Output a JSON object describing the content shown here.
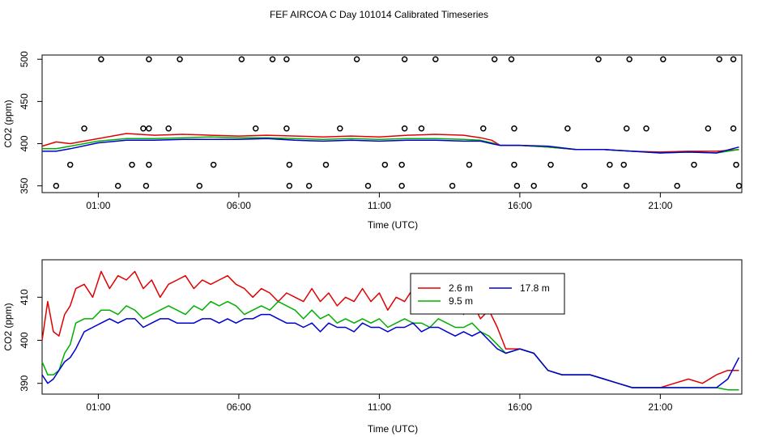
{
  "title": "FEF AIRCOA C  Day 101014  Calibrated Timeseries",
  "colors": {
    "s2_6": "#e00000",
    "s9_5": "#00b000",
    "s17_8": "#0000d0",
    "axis": "#000000"
  },
  "chart_data": [
    {
      "type": "scatter+line",
      "xlabel": "Time (UTC)",
      "ylabel": "CO2 (ppm)",
      "xlim": [
        -1.0,
        23.9
      ],
      "ylim": [
        342,
        505
      ],
      "x_ticks": [
        1,
        6,
        11,
        16,
        21
      ],
      "x_tick_labels": [
        "01:00",
        "06:00",
        "11:00",
        "16:00",
        "21:00"
      ],
      "y_ticks": [
        350,
        400,
        450,
        500
      ],
      "y_tick_labels": [
        "350",
        "400",
        "450",
        "500"
      ],
      "grid": false,
      "points": [
        [
          -0.5,
          350
        ],
        [
          0.0,
          375
        ],
        [
          0.5,
          418
        ],
        [
          1.1,
          500
        ],
        [
          1.7,
          350
        ],
        [
          2.2,
          375
        ],
        [
          2.6,
          418
        ],
        [
          2.8,
          375
        ],
        [
          2.8,
          418
        ],
        [
          2.7,
          350
        ],
        [
          2.8,
          500
        ],
        [
          3.5,
          418
        ],
        [
          3.9,
          500
        ],
        [
          4.6,
          350
        ],
        [
          5.1,
          375
        ],
        [
          6.6,
          418
        ],
        [
          6.1,
          500
        ],
        [
          7.2,
          500
        ],
        [
          7.7,
          418
        ],
        [
          7.7,
          500
        ],
        [
          7.8,
          375
        ],
        [
          7.8,
          350
        ],
        [
          8.5,
          350
        ],
        [
          9.1,
          375
        ],
        [
          9.6,
          418
        ],
        [
          10.2,
          500
        ],
        [
          10.6,
          350
        ],
        [
          11.2,
          375
        ],
        [
          11.8,
          375
        ],
        [
          11.8,
          350
        ],
        [
          11.9,
          418
        ],
        [
          11.9,
          500
        ],
        [
          12.5,
          418
        ],
        [
          13.0,
          500
        ],
        [
          13.6,
          350
        ],
        [
          14.2,
          375
        ],
        [
          14.7,
          418
        ],
        [
          15.1,
          500
        ],
        [
          15.7,
          500
        ],
        [
          15.8,
          418
        ],
        [
          15.8,
          375
        ],
        [
          15.9,
          350
        ],
        [
          16.5,
          350
        ],
        [
          17.1,
          375
        ],
        [
          17.7,
          418
        ],
        [
          18.3,
          350
        ],
        [
          18.8,
          500
        ],
        [
          19.2,
          375
        ],
        [
          19.7,
          375
        ],
        [
          19.8,
          418
        ],
        [
          19.8,
          350
        ],
        [
          19.9,
          500
        ],
        [
          20.5,
          418
        ],
        [
          21.1,
          500
        ],
        [
          21.6,
          350
        ],
        [
          22.2,
          375
        ],
        [
          22.7,
          418
        ],
        [
          23.1,
          500
        ],
        [
          23.6,
          500
        ],
        [
          23.6,
          418
        ],
        [
          23.7,
          375
        ],
        [
          23.8,
          350
        ]
      ],
      "series": [
        {
          "name": "2.6 m",
          "x": [
            -1.0,
            -0.5,
            0,
            1,
            2,
            3,
            4,
            5,
            6,
            7,
            8,
            9,
            10,
            11,
            12,
            13,
            14,
            14.6,
            15.0,
            15.3,
            16,
            17,
            18,
            19,
            20,
            21,
            22,
            23,
            23.8
          ],
          "values": [
            397,
            402,
            400,
            406,
            412,
            410,
            411,
            410,
            409,
            410,
            409,
            408,
            409,
            408,
            410,
            411,
            410,
            407,
            404,
            398,
            398,
            396,
            393,
            393,
            391,
            390,
            391,
            391,
            393
          ]
        },
        {
          "name": "9.5 m",
          "x": [
            -1.0,
            -0.5,
            0,
            1,
            2,
            3,
            4,
            5,
            6,
            7,
            8,
            9,
            10,
            11,
            12,
            13,
            14,
            14.6,
            15.0,
            15.3,
            16,
            17,
            18,
            19,
            20,
            21,
            22,
            23,
            23.8
          ],
          "values": [
            394,
            394,
            397,
            403,
            406,
            406,
            407,
            408,
            407,
            407,
            406,
            405,
            406,
            405,
            406,
            406,
            405,
            404,
            401,
            398,
            398,
            396,
            393,
            393,
            391,
            389,
            390,
            389,
            393
          ]
        },
        {
          "name": "17.8 m",
          "x": [
            -1.0,
            -0.5,
            0,
            1,
            2,
            3,
            4,
            5,
            6,
            7,
            8,
            9,
            10,
            11,
            12,
            13,
            14,
            14.6,
            15.0,
            15.3,
            16,
            17,
            18,
            19,
            20,
            21,
            22,
            23,
            23.8
          ],
          "values": [
            391,
            391,
            394,
            401,
            404,
            404,
            405,
            405,
            405,
            406,
            404,
            403,
            404,
            403,
            404,
            404,
            403,
            403,
            400,
            398,
            398,
            397,
            393,
            393,
            391,
            389,
            390,
            389,
            396
          ]
        }
      ]
    },
    {
      "type": "line",
      "xlabel": "Time (UTC)",
      "ylabel": "CO2 (ppm)",
      "xlim": [
        -1.0,
        23.9
      ],
      "ylim": [
        387.5,
        418.7
      ],
      "x_ticks": [
        1,
        6,
        11,
        16,
        21
      ],
      "x_tick_labels": [
        "01:00",
        "06:00",
        "11:00",
        "16:00",
        "21:00"
      ],
      "y_ticks": [
        390,
        400,
        410
      ],
      "y_tick_labels": [
        "390",
        "400",
        "410"
      ],
      "grid": false,
      "legend": {
        "placement": "top-center",
        "entries": [
          "2.6 m",
          "17.8 m",
          "9.5 m"
        ]
      },
      "series": [
        {
          "name": "2.6 m",
          "x": [
            -1.0,
            -0.8,
            -0.6,
            -0.4,
            -0.2,
            0.0,
            0.2,
            0.5,
            0.8,
            1.1,
            1.4,
            1.7,
            2.0,
            2.3,
            2.6,
            2.9,
            3.2,
            3.5,
            3.8,
            4.1,
            4.4,
            4.7,
            5.0,
            5.3,
            5.6,
            5.9,
            6.2,
            6.5,
            6.8,
            7.1,
            7.4,
            7.7,
            8.0,
            8.3,
            8.6,
            8.9,
            9.2,
            9.5,
            9.8,
            10.1,
            10.4,
            10.7,
            11.0,
            11.3,
            11.6,
            11.9,
            12.2,
            12.5,
            12.8,
            13.1,
            13.4,
            13.7,
            14.0,
            14.3,
            14.6,
            14.9,
            15.2,
            15.5,
            16.0,
            16.5,
            17.0,
            17.5,
            18.0,
            18.5,
            19.0,
            19.5,
            20.0,
            20.5,
            21.0,
            21.5,
            22.0,
            22.5,
            23.0,
            23.4,
            23.8
          ],
          "values": [
            400,
            409,
            402,
            401,
            406,
            408,
            412,
            413,
            410,
            416,
            412,
            415,
            414,
            416,
            412,
            414,
            410,
            413,
            414,
            415,
            412,
            414,
            413,
            414,
            415,
            413,
            412,
            410,
            412,
            411,
            409,
            411,
            410,
            409,
            412,
            409,
            411,
            408,
            410,
            409,
            412,
            409,
            411,
            407,
            410,
            409,
            412,
            408,
            410,
            411,
            409,
            410,
            406,
            409,
            405,
            407,
            403,
            398,
            398,
            397,
            393,
            392,
            392,
            392,
            391,
            390,
            389,
            389,
            389,
            390,
            391,
            390,
            392,
            393,
            393
          ]
        },
        {
          "name": "9.5 m",
          "x": [
            -1.0,
            -0.8,
            -0.6,
            -0.4,
            -0.2,
            0.0,
            0.2,
            0.5,
            0.8,
            1.1,
            1.4,
            1.7,
            2.0,
            2.3,
            2.6,
            2.9,
            3.2,
            3.5,
            3.8,
            4.1,
            4.4,
            4.7,
            5.0,
            5.3,
            5.6,
            5.9,
            6.2,
            6.5,
            6.8,
            7.1,
            7.4,
            7.7,
            8.0,
            8.3,
            8.6,
            8.9,
            9.2,
            9.5,
            9.8,
            10.1,
            10.4,
            10.7,
            11.0,
            11.3,
            11.6,
            11.9,
            12.2,
            12.5,
            12.8,
            13.1,
            13.4,
            13.7,
            14.0,
            14.3,
            14.6,
            14.9,
            15.2,
            15.5,
            16.0,
            16.5,
            17.0,
            17.5,
            18.0,
            18.5,
            19.0,
            19.5,
            20.0,
            20.5,
            21.0,
            21.5,
            22.0,
            22.5,
            23.0,
            23.4,
            23.8
          ],
          "values": [
            395,
            392,
            392,
            393,
            397,
            399,
            404,
            405,
            405,
            407,
            407,
            406,
            408,
            407,
            405,
            406,
            407,
            408,
            407,
            406,
            408,
            407,
            409,
            408,
            409,
            408,
            406,
            407,
            408,
            407,
            409,
            408,
            407,
            405,
            407,
            405,
            406,
            404,
            405,
            404,
            405,
            404,
            405,
            403,
            404,
            405,
            404,
            404,
            403,
            405,
            404,
            403,
            403,
            404,
            402,
            401,
            399,
            397,
            398,
            397,
            393,
            392,
            392,
            392,
            391,
            390,
            389,
            389,
            389,
            389,
            389,
            389,
            389,
            388.5,
            388.5
          ]
        },
        {
          "name": "17.8 m",
          "x": [
            -1.0,
            -0.8,
            -0.6,
            -0.4,
            -0.2,
            0.0,
            0.2,
            0.5,
            0.8,
            1.1,
            1.4,
            1.7,
            2.0,
            2.3,
            2.6,
            2.9,
            3.2,
            3.5,
            3.8,
            4.1,
            4.4,
            4.7,
            5.0,
            5.3,
            5.6,
            5.9,
            6.2,
            6.5,
            6.8,
            7.1,
            7.4,
            7.7,
            8.0,
            8.3,
            8.6,
            8.9,
            9.2,
            9.5,
            9.8,
            10.1,
            10.4,
            10.7,
            11.0,
            11.3,
            11.6,
            11.9,
            12.2,
            12.5,
            12.8,
            13.1,
            13.4,
            13.7,
            14.0,
            14.3,
            14.6,
            14.9,
            15.2,
            15.5,
            16.0,
            16.5,
            17.0,
            17.5,
            18.0,
            18.5,
            19.0,
            19.5,
            20.0,
            20.5,
            21.0,
            21.5,
            22.0,
            22.5,
            23.0,
            23.4,
            23.8
          ],
          "values": [
            392,
            390,
            391,
            393,
            395,
            396,
            398,
            402,
            403,
            404,
            405,
            404,
            405,
            405,
            403,
            404,
            405,
            405,
            404,
            404,
            404,
            405,
            405,
            404,
            405,
            404,
            405,
            405,
            406,
            406,
            405,
            404,
            404,
            403,
            404,
            402,
            404,
            403,
            403,
            402,
            404,
            403,
            403,
            402,
            403,
            403,
            404,
            402,
            403,
            403,
            402,
            401,
            402,
            401,
            402,
            400,
            398,
            397,
            398,
            397,
            393,
            392,
            392,
            392,
            391,
            390,
            389,
            389,
            389,
            389,
            389,
            389,
            389,
            391,
            396
          ]
        }
      ]
    }
  ]
}
